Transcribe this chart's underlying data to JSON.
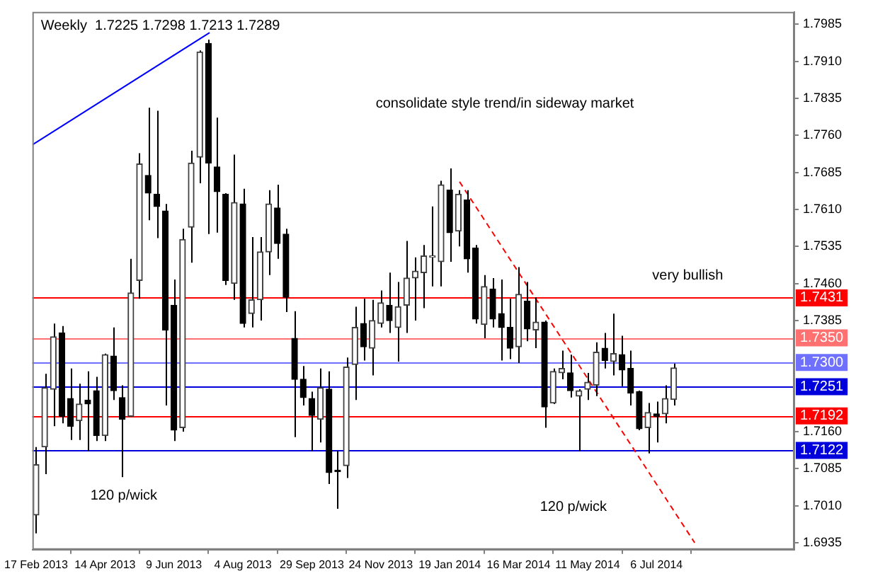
{
  "chart_data": {
    "type": "candlestick",
    "title": "Weekly  1.7225 1.7298 1.7213 1.7289",
    "x": [
      "2013-02-17",
      "2013-02-24",
      "2013-03-03",
      "2013-03-10",
      "2013-03-17",
      "2013-03-24",
      "2013-03-31",
      "2013-04-07",
      "2013-04-14",
      "2013-04-21",
      "2013-04-28",
      "2013-05-05",
      "2013-05-12",
      "2013-05-19",
      "2013-05-26",
      "2013-06-02",
      "2013-06-09",
      "2013-06-16",
      "2013-06-23",
      "2013-06-30",
      "2013-07-07",
      "2013-07-14",
      "2013-07-21",
      "2013-07-28",
      "2013-08-04",
      "2013-08-11",
      "2013-08-18",
      "2013-08-25",
      "2013-09-01",
      "2013-09-08",
      "2013-09-15",
      "2013-09-22",
      "2013-09-29",
      "2013-10-06",
      "2013-10-13",
      "2013-10-20",
      "2013-10-27",
      "2013-11-03",
      "2013-11-10",
      "2013-11-17",
      "2013-11-24",
      "2013-12-01",
      "2013-12-08",
      "2013-12-15",
      "2013-12-22",
      "2013-12-29",
      "2014-01-05",
      "2014-01-12",
      "2014-01-19",
      "2014-01-26",
      "2014-02-02",
      "2014-02-09",
      "2014-02-16",
      "2014-02-23",
      "2014-03-02",
      "2014-03-09",
      "2014-03-16",
      "2014-03-23",
      "2014-03-30",
      "2014-04-06",
      "2014-04-13",
      "2014-04-20",
      "2014-04-27",
      "2014-05-04",
      "2014-05-11",
      "2014-05-18",
      "2014-05-25",
      "2014-06-01",
      "2014-06-08",
      "2014-06-15",
      "2014-06-22",
      "2014-06-29",
      "2014-07-06",
      "2014-07-13",
      "2014-07-20"
    ],
    "ohlc": [
      [
        1.6991,
        1.7129,
        1.6954,
        1.7093
      ],
      [
        1.7129,
        1.7277,
        1.7074,
        1.7249
      ],
      [
        1.7246,
        1.7379,
        1.7171,
        1.7352
      ],
      [
        1.736,
        1.7374,
        1.7177,
        1.7191
      ],
      [
        1.7227,
        1.7288,
        1.7143,
        1.7171
      ],
      [
        1.7182,
        1.7257,
        1.7143,
        1.7216
      ],
      [
        1.7224,
        1.7282,
        1.7121,
        1.7216
      ],
      [
        1.7243,
        1.7271,
        1.7141,
        1.7152
      ],
      [
        1.7152,
        1.7318,
        1.7141,
        1.7316
      ],
      [
        1.7313,
        1.7371,
        1.7224,
        1.7243
      ],
      [
        1.7229,
        1.7254,
        1.7068,
        1.7185
      ],
      [
        1.7191,
        1.751,
        1.7191,
        1.7441
      ],
      [
        1.7466,
        1.7724,
        1.7429,
        1.7702
      ],
      [
        1.7679,
        1.7816,
        1.7588,
        1.7643
      ],
      [
        1.7641,
        1.781,
        1.7552,
        1.7616
      ],
      [
        1.7607,
        1.7621,
        1.7213,
        1.7366
      ],
      [
        1.7416,
        1.7468,
        1.7141,
        1.7163
      ],
      [
        1.7168,
        1.7571,
        1.716,
        1.7549
      ],
      [
        1.7574,
        1.7729,
        1.7502,
        1.7704
      ],
      [
        1.7716,
        1.7932,
        1.7663,
        1.7929
      ],
      [
        1.7946,
        1.7954,
        1.756,
        1.7704
      ],
      [
        1.7696,
        1.7796,
        1.7563,
        1.7646
      ],
      [
        1.7641,
        1.7643,
        1.7457,
        1.7466
      ],
      [
        1.746,
        1.7721,
        1.7427,
        1.7624
      ],
      [
        1.7621,
        1.7652,
        1.7371,
        1.7379
      ],
      [
        1.7399,
        1.7554,
        1.7371,
        1.7427
      ],
      [
        1.7427,
        1.7554,
        1.7385,
        1.7524
      ],
      [
        1.7524,
        1.7649,
        1.7477,
        1.7621
      ],
      [
        1.7613,
        1.766,
        1.751,
        1.7541
      ],
      [
        1.756,
        1.7571,
        1.7402,
        1.7432
      ],
      [
        1.7349,
        1.7404,
        1.7149,
        1.7266
      ],
      [
        1.7266,
        1.7293,
        1.7213,
        1.7229
      ],
      [
        1.7227,
        1.7241,
        1.7121,
        1.7193
      ],
      [
        1.7185,
        1.7288,
        1.7138,
        1.7249
      ],
      [
        1.7246,
        1.7282,
        1.7054,
        1.7077
      ],
      [
        1.7082,
        1.7121,
        1.7004,
        1.7079
      ],
      [
        1.7091,
        1.731,
        1.7066,
        1.7291
      ],
      [
        1.7296,
        1.7413,
        1.7224,
        1.7371
      ],
      [
        1.7379,
        1.7429,
        1.7304,
        1.7332
      ],
      [
        1.7329,
        1.7427,
        1.7274,
        1.7385
      ],
      [
        1.7379,
        1.7446,
        1.7371,
        1.7421
      ],
      [
        1.7416,
        1.7482,
        1.736,
        1.7385
      ],
      [
        1.7371,
        1.7463,
        1.7302,
        1.7413
      ],
      [
        1.7416,
        1.7546,
        1.736,
        1.7471
      ],
      [
        1.7471,
        1.7513,
        1.7385,
        1.7485
      ],
      [
        1.7482,
        1.7538,
        1.741,
        1.7516
      ],
      [
        1.7513,
        1.7616,
        1.7454,
        1.7516
      ],
      [
        1.7504,
        1.7668,
        1.7454,
        1.766
      ],
      [
        1.7649,
        1.7693,
        1.7504,
        1.7563
      ],
      [
        1.7566,
        1.7649,
        1.7535,
        1.7641
      ],
      [
        1.7629,
        1.7649,
        1.7482,
        1.751
      ],
      [
        1.7532,
        1.7538,
        1.7379,
        1.7388
      ],
      [
        1.7377,
        1.7477,
        1.7349,
        1.7454
      ],
      [
        1.7449,
        1.7471,
        1.7371,
        1.7388
      ],
      [
        1.7399,
        1.7468,
        1.7304,
        1.7371
      ],
      [
        1.7371,
        1.7429,
        1.7307,
        1.7329
      ],
      [
        1.7332,
        1.7493,
        1.7299,
        1.7438
      ],
      [
        1.7424,
        1.7463,
        1.7343,
        1.7368
      ],
      [
        1.7366,
        1.7432,
        1.7329,
        1.7382
      ],
      [
        1.7382,
        1.7385,
        1.7168,
        1.721
      ],
      [
        1.7218,
        1.7288,
        1.7216,
        1.7282
      ],
      [
        1.7279,
        1.7324,
        1.7266,
        1.7288
      ],
      [
        1.7279,
        1.7316,
        1.7229,
        1.7243
      ],
      [
        1.7232,
        1.7246,
        1.7121,
        1.7243
      ],
      [
        1.7246,
        1.7279,
        1.7224,
        1.726
      ],
      [
        1.7254,
        1.7341,
        1.7232,
        1.7321
      ],
      [
        1.7329,
        1.736,
        1.7288,
        1.7304
      ],
      [
        1.7302,
        1.7399,
        1.7274,
        1.7318
      ],
      [
        1.7316,
        1.7354,
        1.7252,
        1.7285
      ],
      [
        1.7288,
        1.7324,
        1.7213,
        1.7238
      ],
      [
        1.7241,
        1.7243,
        1.7163,
        1.7166
      ],
      [
        1.7168,
        1.7218,
        1.7116,
        1.7199
      ],
      [
        1.7196,
        1.7221,
        1.7138,
        1.7191
      ],
      [
        1.7196,
        1.7254,
        1.7177,
        1.7227
      ],
      [
        1.7225,
        1.7298,
        1.7213,
        1.7289
      ]
    ],
    "series": [
      {
        "type": "line",
        "x": [
          "2013-02-14",
          "2013-07-08"
        ],
        "values": [
          1.7741,
          1.7968
        ],
        "color": "#0000ff"
      },
      {
        "type": "line",
        "x": [
          "2014-01-27",
          "2014-08-06"
        ],
        "values": [
          1.7666,
          1.6935
        ],
        "color": "#ff0000",
        "line_style": "dashed"
      }
    ],
    "xlim": [
      "2013-02-14",
      "2014-10-26"
    ],
    "xticks": [
      {
        "value": "2013-02-17",
        "label": "17 Feb 2013"
      },
      {
        "value": "2013-04-14",
        "label": "14 Apr 2013"
      },
      {
        "value": "2013-06-09",
        "label": "9 Jun 2013"
      },
      {
        "value": "2013-08-04",
        "label": "4 Aug 2013"
      },
      {
        "value": "2013-09-29",
        "label": "29 Sep 2013"
      },
      {
        "value": "2013-11-24",
        "label": "24 Nov 2013"
      },
      {
        "value": "2014-01-19",
        "label": "19 Jan 2014"
      },
      {
        "value": "2014-03-16",
        "label": "16 Mar 2014"
      },
      {
        "value": "2014-05-11",
        "label": "11 May 2014"
      },
      {
        "value": "2014-07-06",
        "label": "6 Jul 2014"
      }
    ],
    "ylim": [
      1.6921,
      1.801
    ],
    "yticks": [
      1.6935,
      {
        "value": 1.701,
        "label": "1.7010"
      },
      1.7085,
      {
        "value": 1.716,
        "label": "1.7160"
      },
      1.7385,
      {
        "value": 1.746,
        "label": "1.7460"
      },
      1.7535,
      {
        "value": 1.761,
        "label": "1.7610"
      },
      1.7685,
      {
        "value": 1.776,
        "label": "1.7760"
      },
      1.7835,
      {
        "value": 1.791,
        "label": "1.7910"
      },
      1.7985
    ],
    "ref_lines": [
      {
        "axis": "y",
        "value": 1.7431,
        "label": "1.7431",
        "color": "#ff0000"
      },
      {
        "axis": "y",
        "value": 1.735,
        "label": "1.7350",
        "color": "#ff7070"
      },
      {
        "axis": "y",
        "value": 1.73,
        "label": "1.7300",
        "color": "#7070ff"
      },
      {
        "axis": "y",
        "value": 1.7251,
        "label": "1.7251",
        "color": "#0000dd"
      },
      {
        "axis": "y",
        "value": 1.7192,
        "label": "1.7192",
        "color": "#ff0000"
      },
      {
        "axis": "y",
        "value": 1.7122,
        "label": "1.7122",
        "color": "#0000dd"
      }
    ],
    "annotations": [
      "consolidate style trend/in sideway market",
      "very bullish",
      "120 p/wick",
      "120 p/wick"
    ],
    "grid": false,
    "legend": false,
    "marker": "none"
  }
}
